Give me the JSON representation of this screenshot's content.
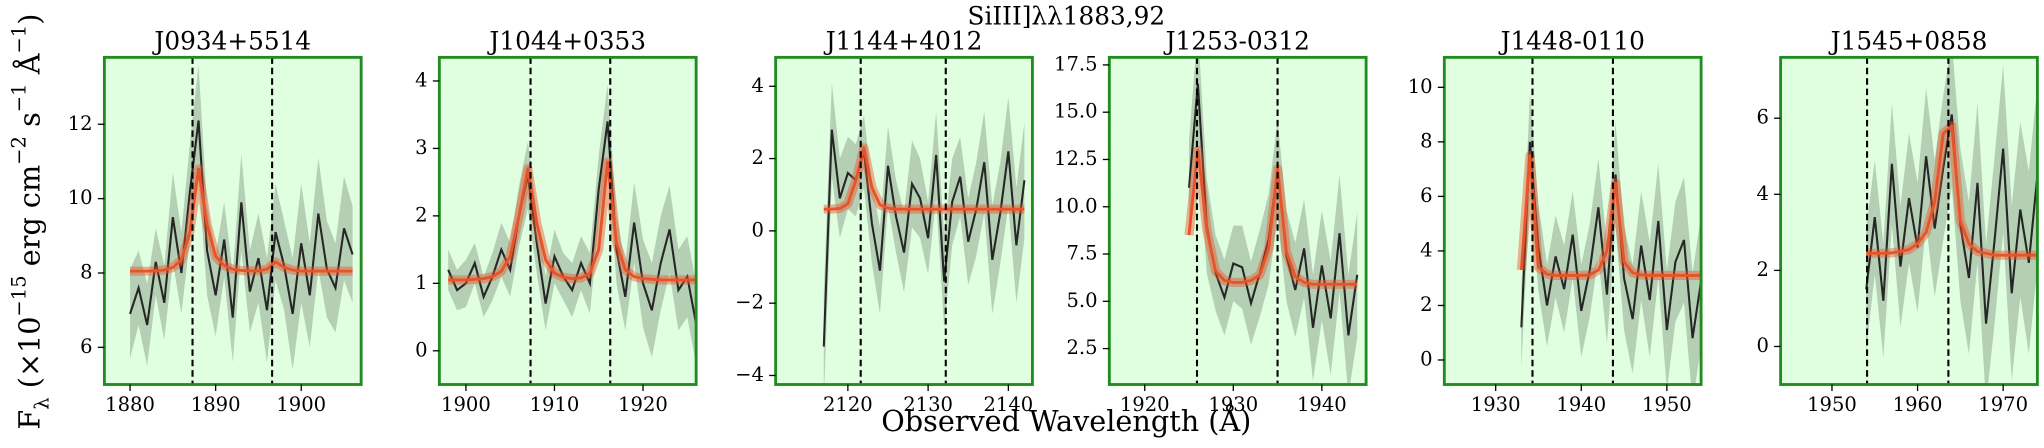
{
  "figure": {
    "title": "SiIII]λλ1883,92",
    "xlabel": "Observed Wavelength (Å)",
    "ylabel": [
      "F",
      "λ",
      " (×10",
      "−15",
      " erg cm",
      "−2",
      " s",
      "−1",
      " Å",
      "−1",
      ")"
    ],
    "colors": {
      "background": "#e0ffe0",
      "frame": "#228b22",
      "flux": "#262626",
      "band": "#8fa88f",
      "model": "#e8542a",
      "marker": "#000000"
    }
  },
  "chart_data": [
    {
      "type": "line",
      "title": "J0934+5514",
      "xlim": [
        1877,
        1907
      ],
      "ylim": [
        5,
        13.8
      ],
      "xticks": [
        1880,
        1890,
        1900
      ],
      "yticks": [
        6,
        8,
        10,
        12
      ],
      "x": [
        1880,
        1881,
        1882,
        1883,
        1884,
        1885,
        1886,
        1887,
        1888,
        1889,
        1890,
        1891,
        1892,
        1893,
        1894,
        1895,
        1896,
        1897,
        1898,
        1899,
        1900,
        1901,
        1902,
        1903,
        1904,
        1905,
        1906
      ],
      "flux": [
        6.9,
        7.6,
        6.6,
        8.3,
        7.2,
        9.5,
        8.0,
        10.2,
        12.1,
        8.6,
        7.4,
        8.9,
        6.8,
        9.9,
        7.5,
        8.4,
        7.0,
        9.1,
        8.2,
        6.9,
        8.8,
        7.4,
        9.6,
        8.1,
        7.6,
        9.2,
        8.5
      ],
      "flux_err": [
        1.2,
        1.0,
        1.1,
        0.9,
        1.0,
        1.2,
        1.1,
        1.3,
        1.5,
        1.2,
        1.1,
        1.0,
        1.2,
        1.3,
        1.1,
        1.2,
        1.4,
        1.3,
        1.2,
        1.5,
        1.6,
        1.4,
        1.5,
        1.3,
        1.2,
        1.4,
        1.3
      ],
      "model": [
        8.05,
        8.05,
        8.05,
        8.06,
        8.08,
        8.15,
        8.35,
        9.1,
        10.8,
        9.3,
        8.45,
        8.2,
        8.1,
        8.07,
        8.06,
        8.06,
        8.1,
        8.3,
        8.15,
        8.08,
        8.05,
        8.05,
        8.05,
        8.05,
        8.05,
        8.05,
        8.05
      ],
      "markers": [
        1887.3,
        1896.6
      ]
    },
    {
      "type": "line",
      "title": "J1044+0353",
      "xlim": [
        1897,
        1926
      ],
      "ylim": [
        -0.5,
        4.35
      ],
      "xticks": [
        1900,
        1910,
        1920
      ],
      "yticks": [
        0,
        1,
        2,
        3,
        4
      ],
      "x": [
        1898,
        1899,
        1900,
        1901,
        1902,
        1903,
        1904,
        1905,
        1906,
        1907,
        1908,
        1909,
        1910,
        1911,
        1912,
        1913,
        1914,
        1915,
        1916,
        1917,
        1918,
        1919,
        1920,
        1921,
        1922,
        1923,
        1924,
        1925,
        1926
      ],
      "flux": [
        1.2,
        0.9,
        1.0,
        1.3,
        0.8,
        1.1,
        1.5,
        1.2,
        2.0,
        2.6,
        1.6,
        0.7,
        1.4,
        1.1,
        0.9,
        1.3,
        1.0,
        2.4,
        3.4,
        1.5,
        0.8,
        1.9,
        1.0,
        0.6,
        1.3,
        1.8,
        0.9,
        1.1,
        0.4
      ],
      "flux_err": [
        0.3,
        0.3,
        0.35,
        0.3,
        0.3,
        0.35,
        0.4,
        0.4,
        0.45,
        0.5,
        0.45,
        0.4,
        0.4,
        0.35,
        0.4,
        0.4,
        0.45,
        0.5,
        0.55,
        0.5,
        0.5,
        0.6,
        0.65,
        0.7,
        0.7,
        0.65,
        0.6,
        0.6,
        0.6
      ],
      "model": [
        1.05,
        1.05,
        1.05,
        1.06,
        1.07,
        1.1,
        1.18,
        1.4,
        2.0,
        2.7,
        1.9,
        1.35,
        1.15,
        1.09,
        1.07,
        1.08,
        1.15,
        1.5,
        2.8,
        1.6,
        1.2,
        1.1,
        1.07,
        1.06,
        1.05,
        1.05,
        1.05,
        1.05,
        1.05
      ],
      "markers": [
        1907.3,
        1916.3
      ]
    },
    {
      "type": "line",
      "title": "J1144+4012",
      "xlim": [
        2111,
        2143
      ],
      "ylim": [
        -4.25,
        4.8
      ],
      "xticks": [
        2120,
        2130,
        2140
      ],
      "yticks": [
        {
          "value": -4,
          "label": "−4"
        },
        {
          "value": -2,
          "label": "−2"
        },
        0,
        2,
        4
      ],
      "x": [
        2117,
        2118,
        2119,
        2120,
        2121,
        2122,
        2123,
        2124,
        2125,
        2126,
        2127,
        2128,
        2129,
        2130,
        2131,
        2132,
        2133,
        2134,
        2135,
        2136,
        2137,
        2138,
        2139,
        2140,
        2141,
        2142
      ],
      "flux": [
        -3.2,
        2.8,
        0.9,
        1.6,
        1.4,
        2.2,
        0.2,
        -1.1,
        1.8,
        0.4,
        -0.6,
        1.3,
        0.9,
        -0.2,
        2.1,
        -1.4,
        0.8,
        1.5,
        -0.3,
        0.6,
        1.9,
        -0.8,
        0.5,
        2.2,
        -0.4,
        1.4
      ],
      "flux_err": [
        1.5,
        1.3,
        1.1,
        1.0,
        1.0,
        1.0,
        1.1,
        1.2,
        1.1,
        1.0,
        1.1,
        1.2,
        1.1,
        1.0,
        1.2,
        1.3,
        1.2,
        1.1,
        1.2,
        1.3,
        1.4,
        1.5,
        1.4,
        1.5,
        1.6,
        1.6
      ],
      "model": [
        0.6,
        0.6,
        0.62,
        0.75,
        1.4,
        2.3,
        1.2,
        0.72,
        0.63,
        0.6,
        0.6,
        0.6,
        0.6,
        0.6,
        0.6,
        0.6,
        0.6,
        0.6,
        0.6,
        0.6,
        0.6,
        0.6,
        0.6,
        0.6,
        0.6,
        0.6
      ],
      "markers": [
        2121.6,
        2132.2
      ]
    },
    {
      "type": "line",
      "title": "J1253-0312",
      "xlim": [
        1916,
        1945
      ],
      "ylim": [
        0.6,
        17.9
      ],
      "xticks": [
        1920,
        1930,
        1940
      ],
      "yticks": [
        2.5,
        {
          "value": 5,
          "label": "5.0"
        },
        7.5,
        {
          "value": 10,
          "label": "10.0"
        },
        12.5,
        {
          "value": 15,
          "label": "15.0"
        },
        17.5
      ],
      "x": [
        1925,
        1926,
        1927,
        1928,
        1929,
        1930,
        1931,
        1932,
        1933,
        1934,
        1935,
        1936,
        1937,
        1938,
        1939,
        1940,
        1941,
        1942,
        1943,
        1944
      ],
      "flux": [
        11.0,
        16.5,
        9.0,
        6.5,
        5.2,
        7.0,
        6.8,
        4.9,
        6.5,
        8.3,
        12.0,
        7.4,
        5.6,
        7.8,
        3.6,
        6.9,
        4.1,
        8.6,
        3.2,
        6.4
      ],
      "flux_err": [
        2.5,
        3.0,
        2.5,
        2.0,
        2.0,
        2.0,
        2.2,
        2.2,
        2.3,
        2.4,
        2.6,
        2.4,
        2.5,
        2.6,
        2.8,
        2.9,
        3.0,
        3.1,
        3.2,
        3.3
      ],
      "model": [
        8.5,
        13.0,
        8.8,
        6.6,
        6.1,
        6.0,
        6.0,
        6.1,
        6.4,
        7.8,
        12.0,
        7.6,
        6.3,
        6.0,
        5.9,
        5.9,
        5.9,
        5.9,
        5.9,
        5.9
      ],
      "markers": [
        1925.9,
        1935.0
      ]
    },
    {
      "type": "line",
      "title": "J1448-0110",
      "xlim": [
        1924,
        1954
      ],
      "ylim": [
        -0.9,
        11.1
      ],
      "xticks": [
        1930,
        1940,
        1950
      ],
      "yticks": [
        0,
        2,
        4,
        6,
        8,
        10
      ],
      "x": [
        1933,
        1934,
        1935,
        1936,
        1937,
        1938,
        1939,
        1940,
        1941,
        1942,
        1943,
        1944,
        1945,
        1946,
        1947,
        1948,
        1949,
        1950,
        1951,
        1952,
        1953,
        1954
      ],
      "flux": [
        1.2,
        8.0,
        4.1,
        2.0,
        3.8,
        2.6,
        4.6,
        1.8,
        3.3,
        5.6,
        2.4,
        6.8,
        3.0,
        1.5,
        4.2,
        2.2,
        5.1,
        1.1,
        3.6,
        4.4,
        0.8,
        2.9
      ],
      "flux_err": [
        1.5,
        1.8,
        1.6,
        1.5,
        1.5,
        1.6,
        1.6,
        1.7,
        1.7,
        1.8,
        1.8,
        1.9,
        1.9,
        2.0,
        2.0,
        2.1,
        2.1,
        2.2,
        2.2,
        2.3,
        2.4,
        2.4
      ],
      "model": [
        3.3,
        7.5,
        3.4,
        3.15,
        3.1,
        3.1,
        3.1,
        3.1,
        3.12,
        3.3,
        4.0,
        6.5,
        3.6,
        3.2,
        3.12,
        3.1,
        3.1,
        3.1,
        3.1,
        3.1,
        3.1,
        3.1
      ],
      "markers": [
        1934.3,
        1943.7
      ]
    },
    {
      "type": "line",
      "title": "J1545+0858",
      "xlim": [
        1944,
        1974
      ],
      "ylim": [
        -1,
        7.6
      ],
      "xticks": [
        1950,
        1960,
        1970
      ],
      "yticks": [
        0,
        2,
        4,
        6
      ],
      "x": [
        1954,
        1955,
        1956,
        1957,
        1958,
        1959,
        1960,
        1961,
        1962,
        1963,
        1964,
        1965,
        1966,
        1967,
        1968,
        1969,
        1970,
        1971,
        1972,
        1973,
        1974
      ],
      "flux": [
        1.5,
        3.4,
        1.2,
        4.8,
        2.1,
        3.9,
        2.6,
        5.0,
        3.1,
        4.7,
        6.1,
        3.2,
        1.8,
        4.3,
        0.6,
        2.8,
        5.2,
        1.4,
        3.6,
        2.2,
        4.5
      ],
      "flux_err": [
        1.6,
        1.5,
        1.5,
        1.6,
        1.6,
        1.7,
        1.7,
        1.8,
        1.8,
        1.9,
        1.9,
        2.0,
        2.0,
        2.1,
        2.1,
        2.2,
        2.2,
        2.3,
        2.3,
        2.4,
        2.4
      ],
      "model": [
        2.45,
        2.45,
        2.45,
        2.46,
        2.5,
        2.55,
        2.7,
        3.0,
        3.8,
        5.6,
        5.8,
        3.3,
        2.7,
        2.5,
        2.45,
        2.4,
        2.4,
        2.4,
        2.4,
        2.4,
        2.4
      ],
      "markers": [
        1954.1,
        1963.6
      ]
    }
  ]
}
